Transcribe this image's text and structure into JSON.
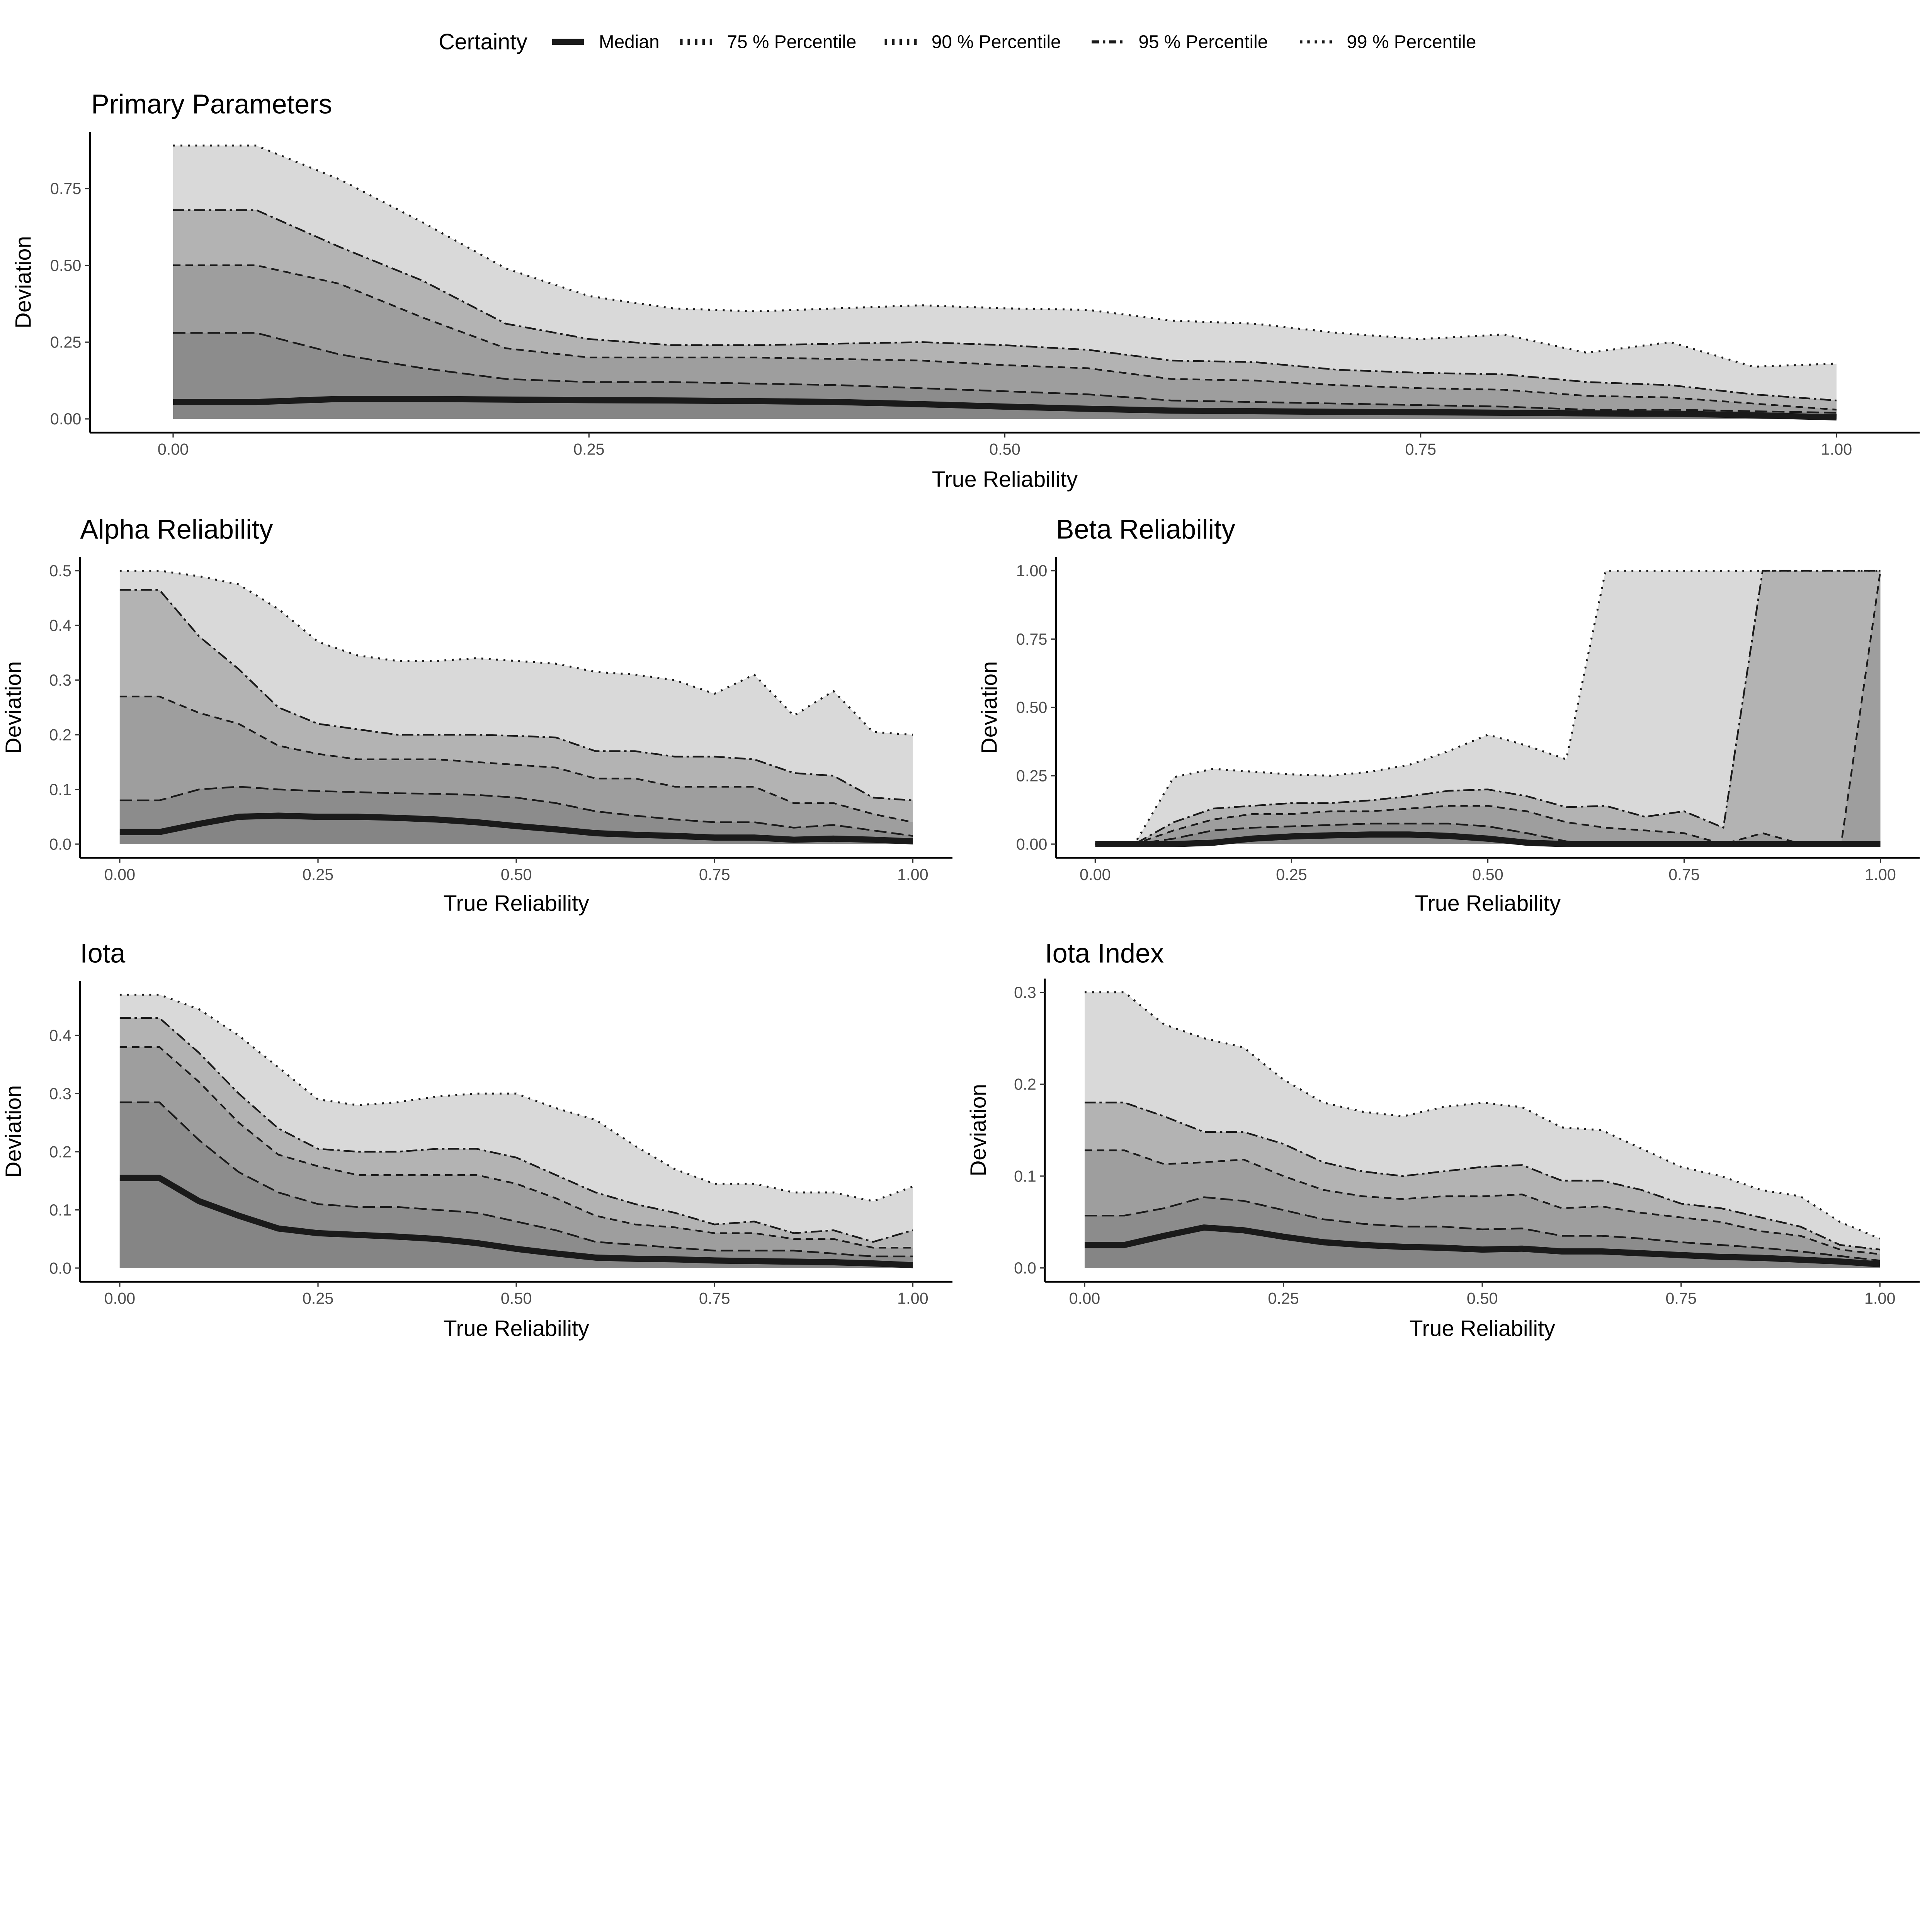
{
  "legend": {
    "title": "Certainty",
    "entries": [
      "Median",
      "75 % Percentile",
      "90 % Percentile",
      "95 % Percentile",
      "99 % Percentile"
    ]
  },
  "colors": {
    "line": "#1a1a1a",
    "fill_median": "#858585",
    "fill_p75": "#8c8c8c",
    "fill_p90": "#9e9e9e",
    "fill_p95": "#b3b3b3",
    "fill_p99": "#d9d9d9"
  },
  "chart_data": [
    {
      "type": "area",
      "title": "Primary Parameters",
      "xlabel": "True Reliability",
      "ylabel": "Deviation",
      "xlim": [
        0,
        1
      ],
      "ylim": [
        0,
        0.89
      ],
      "xticks": [
        "0.00",
        "0.25",
        "0.50",
        "0.75",
        "1.00"
      ],
      "yticks": [
        "0.00",
        "0.25",
        "0.50",
        "0.75"
      ],
      "x": [
        0,
        0.05,
        0.1,
        0.15,
        0.2,
        0.25,
        0.3,
        0.35,
        0.4,
        0.45,
        0.5,
        0.55,
        0.6,
        0.65,
        0.7,
        0.75,
        0.8,
        0.85,
        0.9,
        0.95,
        1
      ],
      "series": [
        {
          "name": "Median",
          "values": [
            0.055,
            0.055,
            0.065,
            0.065,
            0.063,
            0.061,
            0.06,
            0.058,
            0.055,
            0.048,
            0.04,
            0.033,
            0.027,
            0.025,
            0.023,
            0.022,
            0.02,
            0.018,
            0.017,
            0.012,
            0.005
          ]
        },
        {
          "name": "75 % Percentile",
          "values": [
            0.28,
            0.28,
            0.21,
            0.165,
            0.13,
            0.12,
            0.12,
            0.115,
            0.11,
            0.1,
            0.09,
            0.08,
            0.06,
            0.055,
            0.05,
            0.045,
            0.04,
            0.03,
            0.03,
            0.025,
            0.02
          ]
        },
        {
          "name": "90 % Percentile",
          "values": [
            0.5,
            0.5,
            0.44,
            0.33,
            0.23,
            0.2,
            0.2,
            0.2,
            0.195,
            0.19,
            0.175,
            0.165,
            0.13,
            0.125,
            0.11,
            0.1,
            0.095,
            0.075,
            0.07,
            0.05,
            0.03
          ]
        },
        {
          "name": "95 % Percentile",
          "values": [
            0.68,
            0.68,
            0.56,
            0.45,
            0.31,
            0.26,
            0.24,
            0.24,
            0.245,
            0.25,
            0.24,
            0.225,
            0.19,
            0.185,
            0.16,
            0.15,
            0.145,
            0.12,
            0.11,
            0.08,
            0.06
          ]
        },
        {
          "name": "99 % Percentile",
          "values": [
            0.89,
            0.89,
            0.78,
            0.64,
            0.49,
            0.4,
            0.36,
            0.35,
            0.36,
            0.37,
            0.36,
            0.355,
            0.32,
            0.31,
            0.28,
            0.26,
            0.275,
            0.215,
            0.25,
            0.17,
            0.18
          ]
        }
      ]
    },
    {
      "type": "area",
      "title": "Alpha Reliability",
      "xlabel": "True Reliability",
      "ylabel": "Deviation",
      "xlim": [
        0,
        1
      ],
      "ylim": [
        0,
        0.5
      ],
      "xticks": [
        "0.00",
        "0.25",
        "0.50",
        "0.75",
        "1.00"
      ],
      "yticks": [
        "0.0",
        "0.1",
        "0.2",
        "0.3",
        "0.4",
        "0.5"
      ],
      "x": [
        0,
        0.05,
        0.1,
        0.15,
        0.2,
        0.25,
        0.3,
        0.35,
        0.4,
        0.45,
        0.5,
        0.55,
        0.6,
        0.65,
        0.7,
        0.75,
        0.8,
        0.85,
        0.9,
        0.95,
        1
      ],
      "series": [
        {
          "name": "Median",
          "values": [
            0.022,
            0.022,
            0.037,
            0.05,
            0.052,
            0.05,
            0.05,
            0.048,
            0.045,
            0.04,
            0.033,
            0.027,
            0.02,
            0.017,
            0.015,
            0.012,
            0.012,
            0.008,
            0.01,
            0.008,
            0.005
          ]
        },
        {
          "name": "75 % Percentile",
          "values": [
            0.08,
            0.08,
            0.1,
            0.105,
            0.1,
            0.097,
            0.095,
            0.093,
            0.092,
            0.09,
            0.085,
            0.075,
            0.06,
            0.052,
            0.045,
            0.04,
            0.04,
            0.03,
            0.035,
            0.025,
            0.015
          ]
        },
        {
          "name": "90 % Percentile",
          "values": [
            0.27,
            0.27,
            0.24,
            0.22,
            0.18,
            0.165,
            0.155,
            0.155,
            0.155,
            0.15,
            0.145,
            0.14,
            0.12,
            0.12,
            0.105,
            0.105,
            0.105,
            0.075,
            0.075,
            0.055,
            0.04
          ]
        },
        {
          "name": "95 % Percentile",
          "values": [
            0.465,
            0.465,
            0.38,
            0.32,
            0.25,
            0.22,
            0.21,
            0.2,
            0.2,
            0.2,
            0.198,
            0.195,
            0.17,
            0.17,
            0.16,
            0.16,
            0.155,
            0.13,
            0.125,
            0.085,
            0.08
          ]
        },
        {
          "name": "99 % Percentile",
          "values": [
            0.5,
            0.5,
            0.49,
            0.475,
            0.43,
            0.37,
            0.345,
            0.335,
            0.335,
            0.34,
            0.335,
            0.33,
            0.315,
            0.31,
            0.3,
            0.275,
            0.31,
            0.235,
            0.28,
            0.205,
            0.2
          ]
        }
      ]
    },
    {
      "type": "area",
      "title": "Beta Reliability",
      "xlabel": "True Reliability",
      "ylabel": "Deviation",
      "xlim": [
        0,
        1
      ],
      "ylim": [
        0,
        1
      ],
      "xticks": [
        "0.00",
        "0.25",
        "0.50",
        "0.75",
        "1.00"
      ],
      "yticks": [
        "0.00",
        "0.25",
        "0.50",
        "0.75",
        "1.00"
      ],
      "x": [
        0,
        0.05,
        0.1,
        0.15,
        0.2,
        0.25,
        0.3,
        0.35,
        0.4,
        0.45,
        0.5,
        0.55,
        0.6,
        0.65,
        0.7,
        0.75,
        0.8,
        0.85,
        0.9,
        0.95,
        1
      ],
      "series": [
        {
          "name": "Median",
          "values": [
            0,
            0,
            0,
            0.005,
            0.02,
            0.028,
            0.032,
            0.035,
            0.035,
            0.03,
            0.02,
            0.005,
            0,
            0,
            0,
            0,
            0,
            0,
            0,
            0,
            0
          ]
        },
        {
          "name": "75 % Percentile",
          "values": [
            0,
            0,
            0.02,
            0.05,
            0.06,
            0.065,
            0.07,
            0.075,
            0.075,
            0.075,
            0.065,
            0.04,
            0.01,
            0,
            0,
            0,
            0,
            0,
            0,
            0,
            0
          ]
        },
        {
          "name": "90 % Percentile",
          "values": [
            0,
            0,
            0.05,
            0.09,
            0.11,
            0.11,
            0.12,
            0.12,
            0.13,
            0.14,
            0.14,
            0.12,
            0.08,
            0.06,
            0.05,
            0.04,
            0,
            0.04,
            0,
            0,
            1
          ]
        },
        {
          "name": "95 % Percentile",
          "values": [
            0,
            0,
            0.08,
            0.13,
            0.14,
            0.15,
            0.15,
            0.16,
            0.175,
            0.195,
            0.2,
            0.175,
            0.135,
            0.14,
            0.1,
            0.12,
            0.06,
            1,
            1,
            1,
            1
          ]
        },
        {
          "name": "99 % Percentile",
          "values": [
            0,
            0,
            0.245,
            0.275,
            0.265,
            0.255,
            0.25,
            0.265,
            0.29,
            0.34,
            0.4,
            0.36,
            0.31,
            1,
            1,
            1,
            1,
            1,
            1,
            1,
            1
          ]
        }
      ]
    },
    {
      "type": "area",
      "title": "Iota",
      "xlabel": "True Reliability",
      "ylabel": "Deviation",
      "xlim": [
        0,
        1
      ],
      "ylim": [
        0,
        0.47
      ],
      "xticks": [
        "0.00",
        "0.25",
        "0.50",
        "0.75",
        "1.00"
      ],
      "yticks": [
        "0.0",
        "0.1",
        "0.2",
        "0.3",
        "0.4"
      ],
      "x": [
        0,
        0.05,
        0.1,
        0.15,
        0.2,
        0.25,
        0.3,
        0.35,
        0.4,
        0.45,
        0.5,
        0.55,
        0.6,
        0.65,
        0.7,
        0.75,
        0.8,
        0.85,
        0.9,
        0.95,
        1
      ],
      "series": [
        {
          "name": "Median",
          "values": [
            0.155,
            0.155,
            0.115,
            0.09,
            0.068,
            0.06,
            0.057,
            0.054,
            0.05,
            0.043,
            0.033,
            0.025,
            0.018,
            0.016,
            0.015,
            0.013,
            0.012,
            0.011,
            0.01,
            0.008,
            0.005
          ]
        },
        {
          "name": "75 % Percentile",
          "values": [
            0.285,
            0.285,
            0.22,
            0.165,
            0.13,
            0.11,
            0.105,
            0.105,
            0.1,
            0.095,
            0.08,
            0.065,
            0.045,
            0.04,
            0.035,
            0.03,
            0.03,
            0.03,
            0.025,
            0.02,
            0.02
          ]
        },
        {
          "name": "90 % Percentile",
          "values": [
            0.38,
            0.38,
            0.32,
            0.25,
            0.195,
            0.175,
            0.16,
            0.16,
            0.16,
            0.16,
            0.145,
            0.12,
            0.09,
            0.075,
            0.07,
            0.06,
            0.06,
            0.05,
            0.05,
            0.035,
            0.035
          ]
        },
        {
          "name": "95 % Percentile",
          "values": [
            0.43,
            0.43,
            0.37,
            0.3,
            0.24,
            0.205,
            0.2,
            0.2,
            0.205,
            0.205,
            0.19,
            0.16,
            0.13,
            0.11,
            0.095,
            0.075,
            0.08,
            0.06,
            0.065,
            0.045,
            0.065
          ]
        },
        {
          "name": "99 % Percentile",
          "values": [
            0.47,
            0.47,
            0.445,
            0.4,
            0.345,
            0.29,
            0.28,
            0.285,
            0.295,
            0.3,
            0.3,
            0.275,
            0.255,
            0.21,
            0.17,
            0.145,
            0.145,
            0.13,
            0.13,
            0.115,
            0.14
          ]
        }
      ]
    },
    {
      "type": "area",
      "title": "Iota Index",
      "xlabel": "True Reliability",
      "ylabel": "Deviation",
      "xlim": [
        0,
        1
      ],
      "ylim": [
        0,
        0.3
      ],
      "xticks": [
        "0.00",
        "0.25",
        "0.50",
        "0.75",
        "1.00"
      ],
      "yticks": [
        "0.0",
        "0.1",
        "0.2",
        "0.3"
      ],
      "x": [
        0,
        0.05,
        0.1,
        0.15,
        0.2,
        0.25,
        0.3,
        0.35,
        0.4,
        0.45,
        0.5,
        0.55,
        0.6,
        0.65,
        0.7,
        0.75,
        0.8,
        0.85,
        0.9,
        0.95,
        1
      ],
      "series": [
        {
          "name": "Median",
          "values": [
            0.025,
            0.025,
            0.035,
            0.044,
            0.041,
            0.034,
            0.028,
            0.025,
            0.023,
            0.022,
            0.02,
            0.021,
            0.018,
            0.018,
            0.016,
            0.014,
            0.012,
            0.011,
            0.009,
            0.007,
            0.004
          ]
        },
        {
          "name": "75 % Percentile",
          "values": [
            0.057,
            0.057,
            0.065,
            0.077,
            0.073,
            0.063,
            0.053,
            0.048,
            0.045,
            0.045,
            0.042,
            0.043,
            0.035,
            0.035,
            0.032,
            0.028,
            0.025,
            0.022,
            0.018,
            0.013,
            0.008
          ]
        },
        {
          "name": "90 % Percentile",
          "values": [
            0.128,
            0.128,
            0.113,
            0.115,
            0.118,
            0.1,
            0.085,
            0.078,
            0.075,
            0.078,
            0.078,
            0.08,
            0.065,
            0.067,
            0.06,
            0.055,
            0.05,
            0.04,
            0.035,
            0.02,
            0.015
          ]
        },
        {
          "name": "95 % Percentile",
          "values": [
            0.18,
            0.18,
            0.165,
            0.148,
            0.148,
            0.135,
            0.115,
            0.105,
            0.1,
            0.105,
            0.11,
            0.112,
            0.095,
            0.095,
            0.085,
            0.07,
            0.065,
            0.055,
            0.045,
            0.025,
            0.02
          ]
        },
        {
          "name": "99 % Percentile",
          "values": [
            0.3,
            0.3,
            0.265,
            0.25,
            0.24,
            0.205,
            0.18,
            0.17,
            0.165,
            0.175,
            0.18,
            0.175,
            0.153,
            0.15,
            0.13,
            0.11,
            0.1,
            0.085,
            0.078,
            0.05,
            0.032
          ]
        }
      ]
    }
  ]
}
